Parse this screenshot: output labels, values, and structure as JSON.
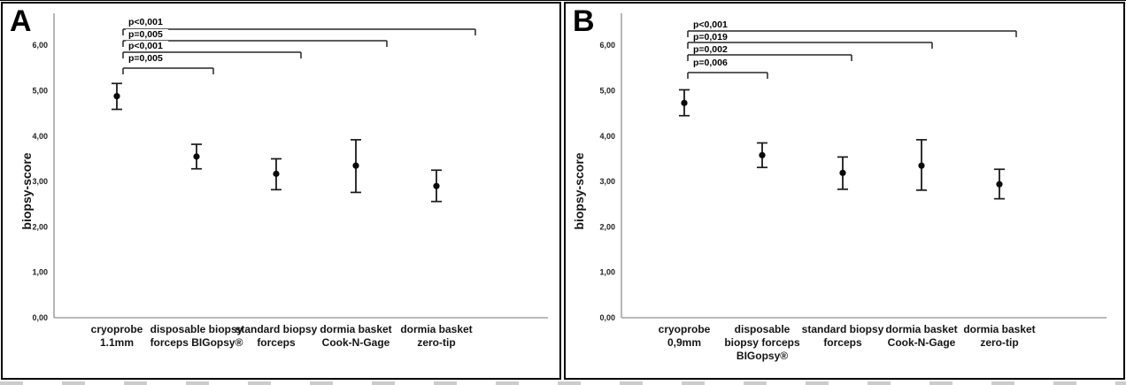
{
  "figure": {
    "type": "errorbar-comparison-figure",
    "background": "#ffffff",
    "ink_color": "#1a1a1a",
    "axis_color": "#a3a3a3"
  },
  "panels": [
    {
      "panel_label": "A",
      "y_axis": {
        "label": "biopsy-score",
        "tick_labels_ascending": [
          "0,00",
          "1,00",
          "2,00",
          "3,00",
          "4,00",
          "5,00",
          "6,00"
        ]
      },
      "categories": [
        {
          "lines": [
            "cryoprobe",
            "1.1mm"
          ]
        },
        {
          "lines": [
            "disposable biopsy",
            "forceps BIGopsy®"
          ]
        },
        {
          "lines": [
            "standard biopsy",
            "forceps"
          ]
        },
        {
          "lines": [
            "dormia basket",
            "Cook-N-Gage"
          ]
        },
        {
          "lines": [
            "dormia basket",
            "zero-tip"
          ]
        }
      ],
      "points": [
        {
          "mean": 4.88,
          "ci_low": 4.59,
          "ci_high": 5.16
        },
        {
          "mean": 3.55,
          "ci_low": 3.28,
          "ci_high": 3.82
        },
        {
          "mean": 3.17,
          "ci_low": 2.82,
          "ci_high": 3.5
        },
        {
          "mean": 3.35,
          "ci_low": 2.76,
          "ci_high": 3.92
        },
        {
          "mean": 2.9,
          "ci_low": 2.56,
          "ci_high": 3.25
        }
      ],
      "comparisons": [
        {
          "from_index": 0,
          "to_index": 4,
          "p_label": "p<0,001"
        },
        {
          "from_index": 0,
          "to_index": 3,
          "p_label": "p=0,005"
        },
        {
          "from_index": 0,
          "to_index": 2,
          "p_label": "p<0,001"
        },
        {
          "from_index": 0,
          "to_index": 1,
          "p_label": "p=0,005"
        }
      ]
    },
    {
      "panel_label": "B",
      "y_axis": {
        "label": "biopsy-score",
        "tick_labels_ascending": [
          "0,00",
          "1,00",
          "2,00",
          "3,00",
          "4,00",
          "5,00",
          "6,00"
        ]
      },
      "categories": [
        {
          "lines": [
            "cryoprobe",
            "0,9mm"
          ]
        },
        {
          "lines": [
            "disposable",
            "biopsy forceps",
            "BIGopsy®"
          ]
        },
        {
          "lines": [
            "standard biopsy",
            "forceps"
          ]
        },
        {
          "lines": [
            "dormia basket",
            "Cook-N-Gage"
          ]
        },
        {
          "lines": [
            "dormia basket",
            "zero-tip"
          ]
        }
      ],
      "points": [
        {
          "mean": 4.73,
          "ci_low": 4.45,
          "ci_high": 5.02
        },
        {
          "mean": 3.58,
          "ci_low": 3.31,
          "ci_high": 3.85
        },
        {
          "mean": 3.19,
          "ci_low": 2.83,
          "ci_high": 3.54
        },
        {
          "mean": 3.35,
          "ci_low": 2.81,
          "ci_high": 3.92
        },
        {
          "mean": 2.94,
          "ci_low": 2.62,
          "ci_high": 3.27
        }
      ],
      "comparisons": [
        {
          "from_index": 0,
          "to_index": 4,
          "p_label": "p<0,001"
        },
        {
          "from_index": 0,
          "to_index": 3,
          "p_label": "p=0,019"
        },
        {
          "from_index": 0,
          "to_index": 2,
          "p_label": "p=0,002"
        },
        {
          "from_index": 0,
          "to_index": 1,
          "p_label": "p=0,006"
        }
      ]
    }
  ],
  "chart_data": [
    {
      "type": "scatter",
      "title": "Panel A",
      "xlabel": "",
      "ylabel": "biopsy-score",
      "ylim": [
        0,
        6.6
      ],
      "yticks": [
        0,
        1,
        2,
        3,
        4,
        5,
        6
      ],
      "grid": false,
      "legend": false,
      "error_bars": true,
      "categories": [
        "cryoprobe 1.1mm",
        "disposable biopsy forceps BIGopsy®",
        "standard biopsy forceps",
        "dormia basket Cook-N-Gage",
        "dormia basket zero-tip"
      ],
      "series": [
        {
          "name": "mean",
          "values": [
            4.88,
            3.55,
            3.17,
            3.35,
            2.9
          ]
        },
        {
          "name": "ci_lower",
          "values": [
            4.59,
            3.28,
            2.82,
            2.76,
            2.56
          ]
        },
        {
          "name": "ci_upper",
          "values": [
            5.16,
            3.82,
            3.5,
            3.92,
            3.25
          ]
        }
      ],
      "annotations": [
        {
          "label": "p<0,001",
          "between": [
            "cryoprobe 1.1mm",
            "dormia basket zero-tip"
          ]
        },
        {
          "label": "p=0,005",
          "between": [
            "cryoprobe 1.1mm",
            "dormia basket Cook-N-Gage"
          ]
        },
        {
          "label": "p<0,001",
          "between": [
            "cryoprobe 1.1mm",
            "standard biopsy forceps"
          ]
        },
        {
          "label": "p=0,005",
          "between": [
            "cryoprobe 1.1mm",
            "disposable biopsy forceps BIGopsy®"
          ]
        }
      ]
    },
    {
      "type": "scatter",
      "title": "Panel B",
      "xlabel": "",
      "ylabel": "biopsy-score",
      "ylim": [
        0,
        6.6
      ],
      "yticks": [
        0,
        1,
        2,
        3,
        4,
        5,
        6
      ],
      "grid": false,
      "legend": false,
      "error_bars": true,
      "categories": [
        "cryoprobe 0,9mm",
        "disposable biopsy forceps BIGopsy®",
        "standard biopsy forceps",
        "dormia basket Cook-N-Gage",
        "dormia basket zero-tip"
      ],
      "series": [
        {
          "name": "mean",
          "values": [
            4.73,
            3.58,
            3.19,
            3.35,
            2.94
          ]
        },
        {
          "name": "ci_lower",
          "values": [
            4.45,
            3.31,
            2.83,
            2.81,
            2.62
          ]
        },
        {
          "name": "ci_upper",
          "values": [
            5.02,
            3.85,
            3.54,
            3.92,
            3.27
          ]
        }
      ],
      "annotations": [
        {
          "label": "p<0,001",
          "between": [
            "cryoprobe 0,9mm",
            "dormia basket zero-tip"
          ]
        },
        {
          "label": "p=0,019",
          "between": [
            "cryoprobe 0,9mm",
            "dormia basket Cook-N-Gage"
          ]
        },
        {
          "label": "p=0,002",
          "between": [
            "cryoprobe 0,9mm",
            "standard biopsy forceps"
          ]
        },
        {
          "label": "p=0,006",
          "between": [
            "cryoprobe 0,9mm",
            "disposable biopsy forceps BIGopsy®"
          ]
        }
      ]
    }
  ]
}
